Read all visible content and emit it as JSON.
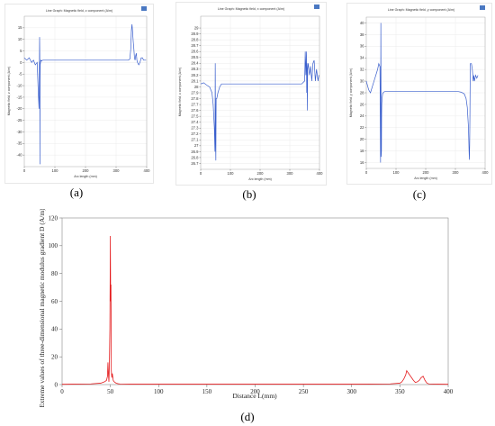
{
  "captions": [
    "(a)",
    "(b)",
    "(c)",
    "(d)"
  ],
  "colors": {
    "comsol_line": "#3a5fcd",
    "d_line": "#e41a1c",
    "frame": "#aaaaaa",
    "grid": "#e6e6e6"
  },
  "chart_data": [
    {
      "type": "line",
      "title": "Line Graph: Magnetic field, z component (A/m)",
      "xlabel": "Arc length (mm)",
      "ylabel": "Magnetic field, z component (A/m)",
      "xlim": [
        0,
        400
      ],
      "ylim": [
        -45,
        20
      ],
      "xticks": [
        "0",
        "100",
        "200",
        "300",
        "400"
      ],
      "yticks": [
        "-40",
        "-35",
        "-30",
        "-25",
        "-20",
        "-15",
        "-10",
        "-5",
        "0",
        "5",
        "10",
        "15"
      ],
      "ytick_values": [
        -40,
        -35,
        -30,
        -25,
        -20,
        -15,
        -10,
        -5,
        0,
        5,
        10,
        15
      ],
      "grid": true,
      "x": [
        0,
        8,
        16,
        24,
        30,
        36,
        42,
        46,
        48,
        49,
        50,
        50.5,
        51,
        51.5,
        52,
        54,
        56,
        60,
        70,
        100,
        200,
        300,
        330,
        340,
        345,
        348,
        350,
        352,
        354,
        356,
        358,
        360,
        362,
        364,
        366,
        368,
        370,
        374,
        378,
        382,
        386,
        390,
        394,
        398
      ],
      "y": [
        2,
        1,
        2,
        0,
        1,
        -1,
        0,
        -14,
        -20,
        -9,
        11,
        4,
        -44,
        -8,
        -1,
        1,
        0.6,
        1,
        1,
        1,
        1,
        1,
        1,
        1,
        1.5,
        6,
        14,
        16.5,
        13,
        9,
        6,
        2,
        1,
        3,
        4,
        1,
        0,
        -1,
        0,
        2,
        2,
        1,
        1,
        1
      ]
    },
    {
      "type": "line",
      "title": "Line Graph: Magnetic field, x component (A/m)",
      "xlabel": "Arc length (mm)",
      "ylabel": "Magnetic field, x component (A/m)",
      "xlim": [
        0,
        400
      ],
      "ylim": [
        26.6,
        29.2
      ],
      "xticks": [
        "0",
        "100",
        "200",
        "300",
        "400"
      ],
      "yticks": [
        "26.7",
        "26.8",
        "26.9",
        "27",
        "27.1",
        "27.2",
        "27.3",
        "27.4",
        "27.5",
        "27.6",
        "27.7",
        "27.8",
        "27.9",
        "28",
        "28.1",
        "28.2",
        "28.3",
        "28.4",
        "28.5",
        "28.6",
        "28.7",
        "28.8",
        "28.9",
        "29"
      ],
      "ytick_values": [
        26.7,
        26.8,
        26.9,
        27,
        27.1,
        27.2,
        27.3,
        27.4,
        27.5,
        27.6,
        27.7,
        27.8,
        27.9,
        28,
        28.1,
        28.2,
        28.3,
        28.4,
        28.5,
        28.6,
        28.7,
        28.8,
        28.9,
        29
      ],
      "grid": true,
      "x": [
        0,
        10,
        20,
        30,
        38,
        42,
        46,
        48,
        49,
        50,
        51,
        52,
        54,
        58,
        64,
        70,
        80,
        100,
        200,
        300,
        340,
        350,
        352,
        354,
        356,
        357,
        358,
        359,
        360,
        362,
        366,
        370,
        374,
        378,
        382,
        386,
        390,
        395,
        398
      ],
      "y": [
        28.05,
        28.07,
        28.03,
        28.0,
        27.9,
        27.7,
        27.3,
        26.9,
        28.4,
        27.1,
        26.75,
        27.8,
        27.8,
        27.9,
        28.0,
        28.05,
        28.05,
        28.05,
        28.05,
        28.05,
        28.05,
        28.1,
        28.6,
        28.2,
        28.6,
        27.9,
        28.4,
        27.6,
        28.3,
        28.4,
        28.2,
        28.35,
        28.1,
        28.4,
        28.45,
        28.1,
        28.3,
        28.1,
        28.2
      ]
    },
    {
      "type": "line",
      "title": "Line Graph: Magnetic field, y component (A/m)",
      "xlabel": "Arc length (mm)",
      "ylabel": "Magnetic field, y component (A/m)",
      "xlim": [
        0,
        400
      ],
      "ylim": [
        15,
        41
      ],
      "xticks": [
        "0",
        "100",
        "200",
        "300",
        "400"
      ],
      "yticks": [
        "16",
        "18",
        "20",
        "22",
        "24",
        "26",
        "28",
        "30",
        "32",
        "34",
        "36",
        "38",
        "40"
      ],
      "ytick_values": [
        16,
        18,
        20,
        22,
        24,
        26,
        28,
        30,
        32,
        34,
        36,
        38,
        40
      ],
      "grid": true,
      "x": [
        0,
        8,
        14,
        20,
        26,
        32,
        38,
        42,
        46,
        48,
        49,
        50,
        51,
        51.5,
        52,
        53,
        55,
        58,
        62,
        66,
        70,
        80,
        100,
        200,
        300,
        310,
        320,
        330,
        336,
        340,
        344,
        346,
        347,
        348,
        349,
        350,
        351,
        352,
        354,
        357,
        360,
        362,
        364,
        368,
        372,
        376
      ],
      "y": [
        30,
        28.5,
        28,
        29,
        30,
        31,
        32,
        33,
        32.5,
        16,
        40,
        17,
        18,
        24,
        26,
        27,
        27.8,
        28.1,
        28.2,
        28.2,
        28.2,
        28.2,
        28.2,
        28.2,
        28.2,
        28.2,
        28.1,
        27.8,
        27,
        25.5,
        22,
        18,
        16.5,
        19,
        25,
        33,
        33,
        33,
        33,
        32,
        30,
        31,
        30,
        31,
        30.5,
        31
      ]
    },
    {
      "type": "line",
      "title": "",
      "xlabel": "Distance L(mm)",
      "ylabel": "Extreme values of three-dimensional magnetic modulus gradient D (A/m)/mm)",
      "xlim": [
        0,
        400
      ],
      "ylim": [
        0,
        120
      ],
      "xticks": [
        "0",
        "50",
        "100",
        "150",
        "200",
        "250",
        "300",
        "350",
        "400"
      ],
      "xtick_values": [
        0,
        50,
        100,
        150,
        200,
        250,
        300,
        350,
        400
      ],
      "yticks": [
        "0",
        "20",
        "40",
        "60",
        "80",
        "100",
        "120"
      ],
      "ytick_values": [
        0,
        20,
        40,
        60,
        80,
        100,
        120
      ],
      "grid": false,
      "x": [
        0,
        10,
        20,
        30,
        40,
        44,
        46,
        47,
        47.5,
        48,
        48.5,
        49,
        49.5,
        50,
        50.3,
        50.6,
        51,
        51.5,
        52,
        53,
        54,
        55,
        56,
        58,
        60,
        70,
        100,
        200,
        300,
        340,
        350,
        352,
        354,
        356,
        357,
        358,
        360,
        362,
        364,
        366,
        368,
        370,
        372,
        374,
        376,
        378,
        380,
        384,
        390,
        400
      ],
      "y": [
        0.2,
        0.3,
        0.4,
        0.5,
        1,
        2,
        3,
        6,
        16,
        8,
        2,
        15,
        40,
        107,
        60,
        72,
        10,
        5,
        8,
        3,
        2,
        1.5,
        1,
        0.6,
        0.4,
        0.3,
        0.3,
        0.3,
        0.3,
        0.5,
        1,
        2,
        4,
        7,
        10,
        9,
        7,
        5,
        3,
        1.5,
        2,
        3,
        5,
        6,
        3,
        1,
        0.5,
        0.4,
        0.3,
        0.2
      ]
    }
  ]
}
